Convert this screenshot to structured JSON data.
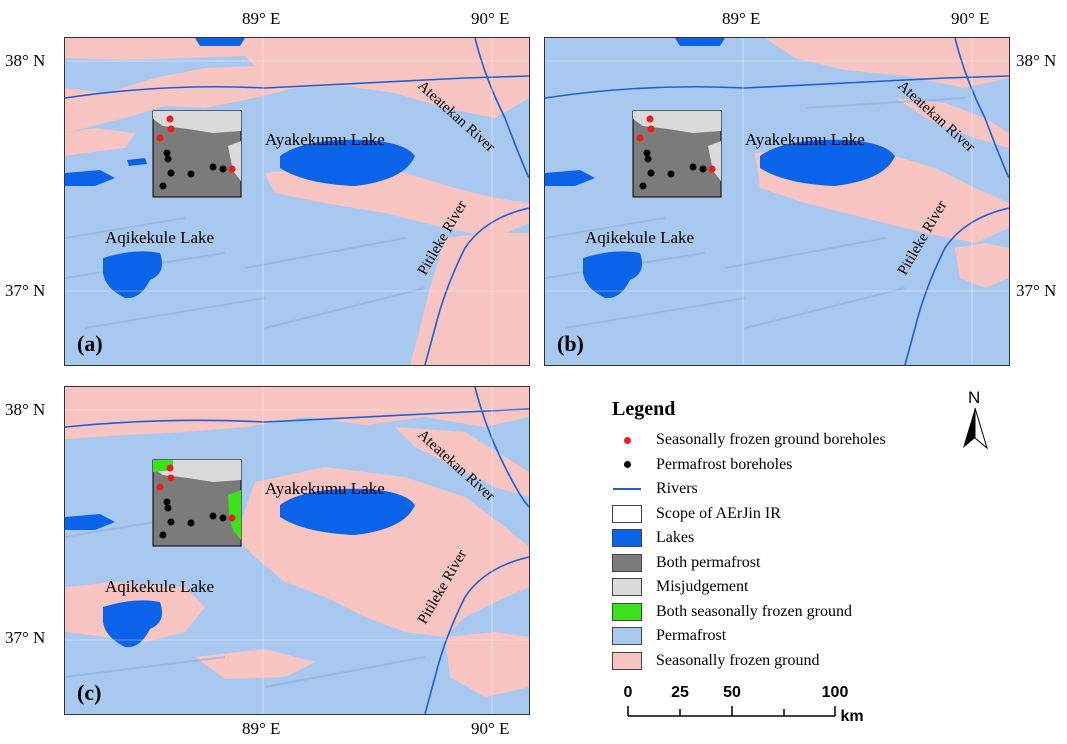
{
  "coords": {
    "lon1": "89° E",
    "lon2": "90° E",
    "lat38": "38° N",
    "lat37": "37° N"
  },
  "panels": [
    {
      "label": "(a)"
    },
    {
      "label": "(b)"
    },
    {
      "label": "(c)"
    }
  ],
  "places": {
    "ayakekumu": "Ayakekumu Lake",
    "aqikekule": "Aqikekule Lake",
    "ateatekan": "Ateatekan River",
    "pitileke": "Pitileke River"
  },
  "north_arrow": {
    "label": "N"
  },
  "legend": {
    "title": "Legend",
    "items": [
      {
        "label": "Seasonally frozen ground boreholes",
        "color": "#e8201c",
        "kind": "dot"
      },
      {
        "label": "Permafrost boreholes",
        "color": "#000000",
        "kind": "dot"
      },
      {
        "label": "Rivers",
        "color": "#1f5fd6",
        "kind": "line"
      },
      {
        "label": "Scope of AErJin IR",
        "color": "#ffffff",
        "kind": "box"
      },
      {
        "label": "Lakes",
        "color": "#0a63e8",
        "kind": "fill"
      },
      {
        "label": "Both permafrost",
        "color": "#7b7b7b",
        "kind": "fill"
      },
      {
        "label": "Misjudgement",
        "color": "#dadada",
        "kind": "fill"
      },
      {
        "label": "Both  seasonally frozen ground",
        "color": "#3de31a",
        "kind": "fill"
      },
      {
        "label": "Permafrost",
        "color": "#a9c8f0",
        "kind": "fill"
      },
      {
        "label": "Seasonally frozen ground",
        "color": "#f7c4c2",
        "kind": "fill"
      }
    ]
  },
  "scale_bar": {
    "ticks": [
      "0",
      "25",
      "50",
      "100"
    ],
    "unit": "km"
  }
}
